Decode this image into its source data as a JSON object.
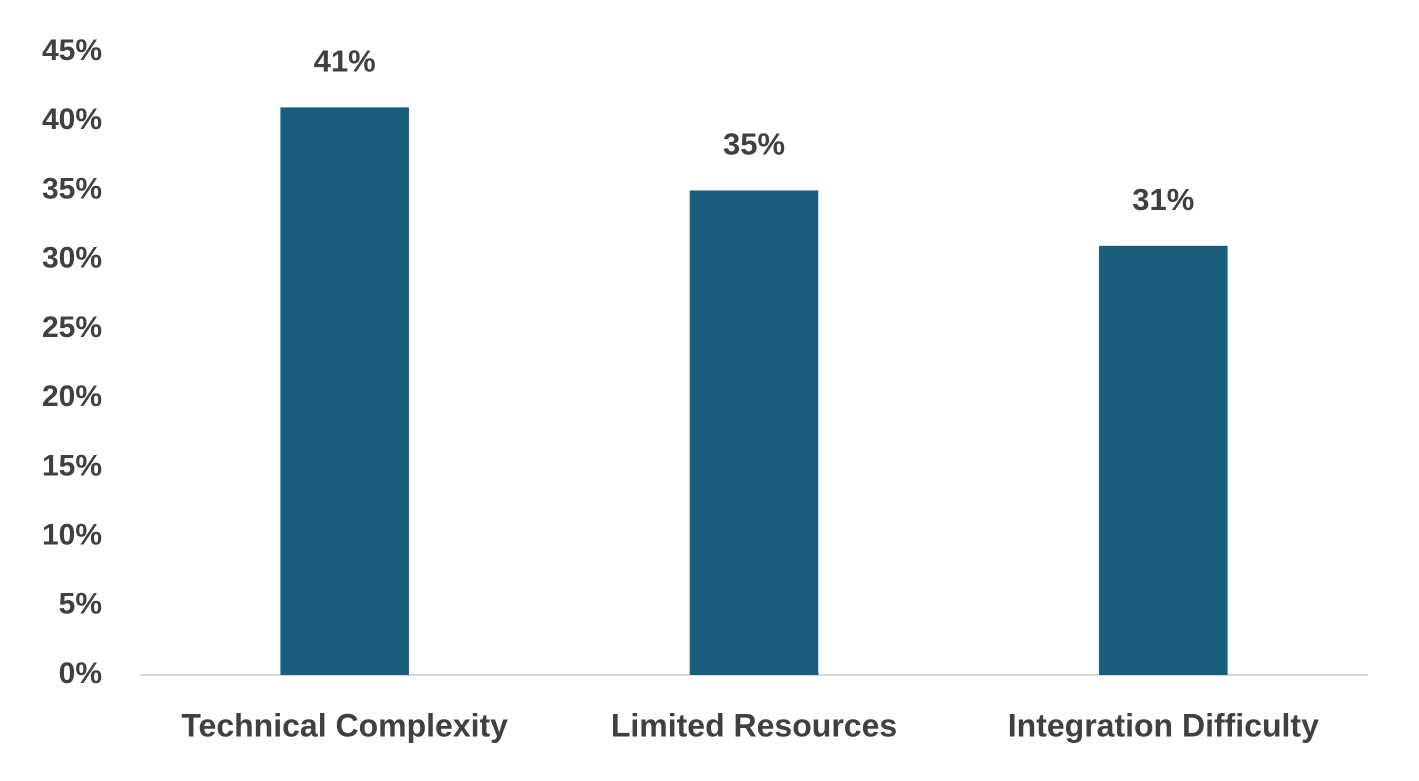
{
  "chart_data": {
    "type": "bar",
    "categories": [
      "Technical Complexity",
      "Limited Resources",
      "Integration Difficulty"
    ],
    "values": [
      41,
      35,
      31
    ],
    "value_labels": [
      "41%",
      "35%",
      "31%"
    ],
    "color": "#1a5e7e",
    "ylim": [
      0,
      45
    ],
    "yticks": [
      {
        "value": 0,
        "label": "0%"
      },
      {
        "value": 5,
        "label": "5%"
      },
      {
        "value": 10,
        "label": "10%"
      },
      {
        "value": 15,
        "label": "15%"
      },
      {
        "value": 20,
        "label": "20%"
      },
      {
        "value": 25,
        "label": "25%"
      },
      {
        "value": 30,
        "label": "30%"
      },
      {
        "value": 35,
        "label": "35%"
      },
      {
        "value": 40,
        "label": "40%"
      },
      {
        "value": 45,
        "label": "45%"
      }
    ],
    "grid": false
  }
}
